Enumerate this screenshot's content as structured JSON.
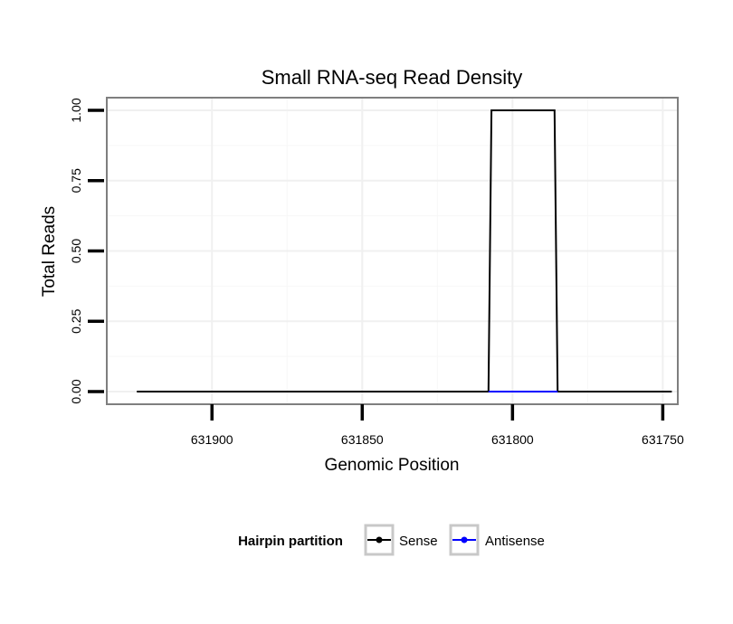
{
  "chart_data": {
    "type": "line",
    "title": "Small RNA-seq Read Density",
    "xlabel": "Genomic Position",
    "ylabel": "Total Reads",
    "x_reversed": true,
    "xlim": [
      631935,
      631745
    ],
    "ylim": [
      -0.045,
      1.045
    ],
    "x_ticks": [
      631900,
      631850,
      631800,
      631750
    ],
    "x_tick_labels": [
      "631900",
      "631850",
      "631800",
      "631750"
    ],
    "y_ticks": [
      0,
      0.25,
      0.5,
      0.75,
      1.0
    ],
    "y_tick_labels": [
      "0.00",
      "0.25",
      "0.50",
      "0.75",
      "1.00"
    ],
    "grid": true,
    "legend": {
      "title": "Hairpin partition",
      "position": "bottom",
      "entries": [
        {
          "name": "Sense",
          "color": "#000000"
        },
        {
          "name": "Antisense",
          "color": "#0000ff"
        }
      ]
    },
    "series": [
      {
        "name": "Sense",
        "color": "#000000",
        "x": [
          631925,
          631808,
          631807,
          631786,
          631785,
          631747
        ],
        "y": [
          0,
          0,
          1,
          1,
          0,
          0
        ]
      },
      {
        "name": "Antisense",
        "color": "#0000ff",
        "x": [
          631808,
          631785
        ],
        "y": [
          0,
          0
        ]
      }
    ]
  }
}
